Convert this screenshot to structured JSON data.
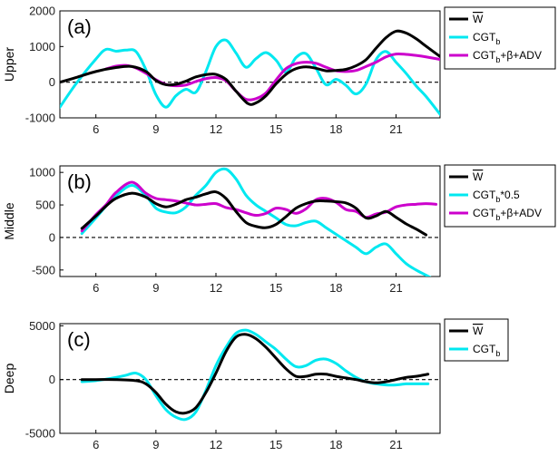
{
  "colors": {
    "w": "#000000",
    "cgt": "#00e8f0",
    "cgt_beta_adv": "#cc00cc",
    "axis": "#000000",
    "zero_line": "#000000"
  },
  "chart_data": [
    {
      "type": "line",
      "panel_label": "(a)",
      "ylabel": "Upper",
      "xlim": [
        4.2,
        23.2
      ],
      "ylim": [
        -1000,
        2000
      ],
      "xticks": [
        6,
        9,
        12,
        15,
        18,
        21
      ],
      "yticks": [
        -1000,
        0,
        1000,
        2000
      ],
      "ytick_labels": [
        "-1000",
        "0",
        "1000",
        "2000"
      ],
      "zero_line": true,
      "legend": {
        "placement": "outside-right"
      },
      "series": [
        {
          "key": "w",
          "name_main": "W",
          "name_sub": "",
          "name_tail": "",
          "overline": true,
          "x": [
            4.2,
            5,
            6,
            7,
            7.8,
            8.5,
            9,
            9.5,
            10,
            10.5,
            11,
            11.6,
            12,
            12.5,
            13,
            13.6,
            14,
            14.5,
            15,
            15.5,
            16,
            16.5,
            17,
            17.5,
            18,
            18.5,
            19,
            19.5,
            20,
            20.5,
            21,
            21.5,
            22,
            22.5,
            23.2
          ],
          "y": [
            0,
            130,
            300,
            410,
            440,
            300,
            50,
            -70,
            -60,
            30,
            150,
            220,
            220,
            80,
            -250,
            -600,
            -580,
            -380,
            -50,
            220,
            380,
            430,
            390,
            320,
            330,
            360,
            460,
            630,
            950,
            1250,
            1430,
            1380,
            1220,
            1010,
            720
          ]
        },
        {
          "key": "cgt",
          "name_main": "CGT",
          "name_sub": "b",
          "name_tail": "",
          "overline": false,
          "x": [
            4.2,
            5,
            6,
            6.5,
            7,
            7.5,
            8,
            8.5,
            9,
            9.5,
            10,
            10.5,
            11,
            11.5,
            12,
            12.5,
            13,
            13.5,
            14,
            14.5,
            15,
            15.5,
            16,
            16.5,
            17,
            17.5,
            18,
            18.5,
            19,
            19.5,
            20,
            20.5,
            21,
            21.5,
            22,
            22.5,
            23.2
          ],
          "y": [
            -700,
            -50,
            650,
            920,
            870,
            900,
            860,
            350,
            -350,
            -700,
            -380,
            -200,
            -280,
            300,
            1000,
            1180,
            820,
            420,
            660,
            830,
            620,
            280,
            690,
            800,
            390,
            -70,
            80,
            -90,
            -330,
            -50,
            630,
            860,
            560,
            250,
            -100,
            -400,
            -900
          ]
        },
        {
          "key": "cgt_beta_adv",
          "name_main": "CGT",
          "name_sub": "b",
          "name_tail": "+β+ADV",
          "overline": false,
          "x": [
            6.5,
            7,
            7.5,
            8,
            8.5,
            9,
            9.5,
            10,
            10.5,
            11,
            11.5,
            12,
            12.5,
            13,
            13.5,
            14,
            14.5,
            15,
            15.5,
            16,
            16.5,
            17,
            17.5,
            18,
            18.5,
            19,
            19.5,
            20,
            20.5,
            21,
            21.5,
            22,
            22.5,
            23.2
          ],
          "y": [
            370,
            450,
            470,
            400,
            250,
            70,
            -60,
            -100,
            -80,
            20,
            100,
            130,
            40,
            -250,
            -480,
            -460,
            -300,
            60,
            380,
            520,
            560,
            530,
            420,
            320,
            300,
            330,
            440,
            560,
            710,
            790,
            780,
            750,
            710,
            640
          ]
        }
      ]
    },
    {
      "type": "line",
      "panel_label": "(b)",
      "ylabel": "Middle",
      "xlim": [
        4.2,
        23.2
      ],
      "ylim": [
        -600,
        1100
      ],
      "xticks": [
        6,
        9,
        12,
        15,
        18,
        21
      ],
      "yticks": [
        -500,
        0,
        500,
        1000
      ],
      "ytick_labels": [
        "-500",
        "0",
        "500",
        "1000"
      ],
      "zero_line": true,
      "legend": {
        "placement": "outside-right"
      },
      "series": [
        {
          "key": "w",
          "name_main": "W",
          "name_sub": "",
          "name_tail": "",
          "overline": true,
          "x": [
            5.3,
            6,
            6.5,
            7,
            7.8,
            8.5,
            9,
            9.5,
            10,
            10.5,
            11,
            11.5,
            12,
            12.5,
            13,
            13.5,
            14,
            14.5,
            15,
            15.5,
            16,
            16.5,
            17,
            17.5,
            18,
            18.5,
            19,
            19.5,
            20,
            20.5,
            21,
            21.5,
            22,
            22.5
          ],
          "y": [
            140,
            330,
            480,
            600,
            680,
            620,
            520,
            470,
            510,
            580,
            620,
            670,
            700,
            600,
            400,
            230,
            170,
            150,
            200,
            320,
            450,
            520,
            560,
            560,
            550,
            530,
            450,
            300,
            330,
            400,
            310,
            210,
            130,
            40
          ]
        },
        {
          "key": "cgt",
          "name_main": "CGT",
          "name_sub": "b",
          "name_tail": "*0.5",
          "overline": false,
          "x": [
            5.3,
            6,
            6.5,
            7,
            7.8,
            8.5,
            9,
            9.5,
            10,
            10.5,
            11,
            11.5,
            12,
            12.5,
            13,
            13.5,
            14,
            14.5,
            15,
            15.5,
            16,
            16.5,
            17,
            17.5,
            18,
            18.5,
            19,
            19.5,
            20,
            20.5,
            21,
            21.5,
            22,
            22.5,
            23
          ],
          "y": [
            60,
            300,
            480,
            640,
            800,
            640,
            450,
            390,
            380,
            470,
            650,
            800,
            1000,
            1050,
            900,
            650,
            500,
            400,
            300,
            200,
            180,
            230,
            250,
            150,
            50,
            -50,
            -150,
            -250,
            -150,
            -100,
            -250,
            -400,
            -500,
            -580,
            -660
          ]
        },
        {
          "key": "cgt_beta_adv",
          "name_main": "CGT",
          "name_sub": "b",
          "name_tail": "+β+ADV",
          "overline": false,
          "x": [
            5.3,
            6,
            6.5,
            7,
            7.8,
            8.5,
            9,
            9.5,
            10,
            10.5,
            11,
            11.5,
            12,
            12.5,
            13,
            13.5,
            14,
            14.5,
            15,
            15.5,
            16,
            16.5,
            17,
            17.5,
            18,
            18.5,
            19,
            19.5,
            20,
            20.5,
            21,
            21.5,
            22,
            22.5,
            23
          ],
          "y": [
            100,
            350,
            500,
            690,
            850,
            680,
            600,
            580,
            560,
            530,
            500,
            510,
            520,
            460,
            430,
            380,
            340,
            370,
            450,
            430,
            370,
            440,
            580,
            600,
            540,
            430,
            400,
            310,
            360,
            390,
            470,
            500,
            510,
            520,
            510
          ]
        }
      ]
    },
    {
      "type": "line",
      "panel_label": "(c)",
      "ylabel": "Deep",
      "xlim": [
        4.2,
        23.2
      ],
      "ylim": [
        -5000,
        5200
      ],
      "xticks": [
        6,
        9,
        12,
        15,
        18,
        21
      ],
      "yticks": [
        -5000,
        0,
        5000
      ],
      "ytick_labels": [
        "-5000",
        "0",
        "5000"
      ],
      "zero_line": true,
      "legend": {
        "placement": "outside-right"
      },
      "series": [
        {
          "key": "w",
          "name_main": "W",
          "name_sub": "",
          "name_tail": "",
          "overline": true,
          "x": [
            5.3,
            6,
            7,
            8,
            8.5,
            9,
            9.5,
            10,
            10.5,
            11,
            11.5,
            12,
            12.5,
            13,
            13.5,
            14,
            14.5,
            15,
            15.5,
            16,
            16.5,
            17,
            17.5,
            18,
            18.5,
            19,
            19.5,
            20,
            20.5,
            21,
            21.5,
            22,
            22.6
          ],
          "y": [
            0,
            0,
            0,
            -100,
            -400,
            -1200,
            -2300,
            -3000,
            -3100,
            -2600,
            -1200,
            600,
            2600,
            3950,
            4200,
            3800,
            3000,
            2000,
            1000,
            300,
            300,
            500,
            500,
            300,
            150,
            0,
            -200,
            -300,
            -200,
            0,
            200,
            300,
            500
          ]
        },
        {
          "key": "cgt",
          "name_main": "CGT",
          "name_sub": "b",
          "name_tail": "",
          "overline": false,
          "x": [
            5.3,
            6,
            7,
            7.5,
            8,
            8.5,
            9,
            9.5,
            10,
            10.5,
            11,
            11.5,
            12,
            12.5,
            13,
            13.5,
            14,
            14.5,
            15,
            15.5,
            16,
            16.5,
            17,
            17.5,
            18,
            18.5,
            19,
            19.5,
            20,
            20.5,
            21,
            21.5,
            22,
            22.6
          ],
          "y": [
            -200,
            -100,
            200,
            400,
            600,
            0,
            -1500,
            -2800,
            -3500,
            -3700,
            -3000,
            -1000,
            1300,
            3000,
            4300,
            4600,
            4200,
            3500,
            2800,
            1900,
            1200,
            1300,
            1800,
            1900,
            1500,
            800,
            200,
            -200,
            -400,
            -500,
            -500,
            -400,
            -400,
            -400
          ]
        }
      ]
    }
  ]
}
